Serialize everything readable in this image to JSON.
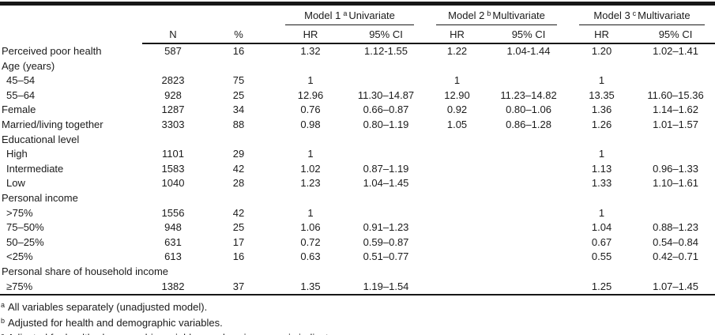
{
  "table": {
    "col_headers": {
      "n": "N",
      "pct": "%",
      "hr": "HR",
      "ci": "95% CI"
    },
    "model_groups": [
      {
        "name": "Model 1",
        "sup": "a",
        "type": "Univariate"
      },
      {
        "name": "Model 2",
        "sup": "b",
        "type": "Multivariate"
      },
      {
        "name": "Model 3",
        "sup": "c",
        "type": "Multivariate"
      }
    ],
    "rows": [
      {
        "label": "Perceived poor health",
        "category": false,
        "indent": false,
        "n": "587",
        "pct": "16",
        "m1hr": "1.32",
        "m1ci": "1.12-1.55",
        "m2hr": "1.22",
        "m2ci": "1.04-1.44",
        "m3hr": "1.20",
        "m3ci": "1.02–1.41"
      },
      {
        "label": "Age (years)",
        "category": true,
        "indent": false,
        "n": "",
        "pct": "",
        "m1hr": "",
        "m1ci": "",
        "m2hr": "",
        "m2ci": "",
        "m3hr": "",
        "m3ci": ""
      },
      {
        "label": "45–54",
        "category": false,
        "indent": true,
        "n": "2823",
        "pct": "75",
        "m1hr": "1",
        "m1ci": "",
        "m2hr": "1",
        "m2ci": "",
        "m3hr": "1",
        "m3ci": ""
      },
      {
        "label": "55–64",
        "category": false,
        "indent": true,
        "n": "928",
        "pct": "25",
        "m1hr": "12.96",
        "m1ci": "11.30–14.87",
        "m2hr": "12.90",
        "m2ci": "11.23–14.82",
        "m3hr": "13.35",
        "m3ci": "11.60–15.36"
      },
      {
        "label": "Female",
        "category": false,
        "indent": false,
        "n": "1287",
        "pct": "34",
        "m1hr": "0.76",
        "m1ci": "0.66–0.87",
        "m2hr": "0.92",
        "m2ci": "0.80–1.06",
        "m3hr": "1.36",
        "m3ci": "1.14–1.62"
      },
      {
        "label": "Married/living together",
        "category": false,
        "indent": false,
        "n": "3303",
        "pct": "88",
        "m1hr": "0.98",
        "m1ci": "0.80–1.19",
        "m2hr": "1.05",
        "m2ci": "0.86–1.28",
        "m3hr": "1.26",
        "m3ci": "1.01–1.57"
      },
      {
        "label": "Educational level",
        "category": true,
        "indent": false,
        "n": "",
        "pct": "",
        "m1hr": "",
        "m1ci": "",
        "m2hr": "",
        "m2ci": "",
        "m3hr": "",
        "m3ci": ""
      },
      {
        "label": "High",
        "category": false,
        "indent": true,
        "n": "1101",
        "pct": "29",
        "m1hr": "1",
        "m1ci": "",
        "m2hr": "",
        "m2ci": "",
        "m3hr": "1",
        "m3ci": ""
      },
      {
        "label": "Intermediate",
        "category": false,
        "indent": true,
        "n": "1583",
        "pct": "42",
        "m1hr": "1.02",
        "m1ci": "0.87–1.19",
        "m2hr": "",
        "m2ci": "",
        "m3hr": "1.13",
        "m3ci": "0.96–1.33"
      },
      {
        "label": "Low",
        "category": false,
        "indent": true,
        "n": "1040",
        "pct": "28",
        "m1hr": "1.23",
        "m1ci": "1.04–1.45",
        "m2hr": "",
        "m2ci": "",
        "m3hr": "1.33",
        "m3ci": "1.10–1.61"
      },
      {
        "label": "Personal income",
        "category": true,
        "indent": false,
        "n": "",
        "pct": "",
        "m1hr": "",
        "m1ci": "",
        "m2hr": "",
        "m2ci": "",
        "m3hr": "",
        "m3ci": ""
      },
      {
        "label": ">75%",
        "category": false,
        "indent": true,
        "n": "1556",
        "pct": "42",
        "m1hr": "1",
        "m1ci": "",
        "m2hr": "",
        "m2ci": "",
        "m3hr": "1",
        "m3ci": ""
      },
      {
        "label": "75–50%",
        "category": false,
        "indent": true,
        "n": "948",
        "pct": "25",
        "m1hr": "1.06",
        "m1ci": "0.91–1.23",
        "m2hr": "",
        "m2ci": "",
        "m3hr": "1.04",
        "m3ci": "0.88–1.23"
      },
      {
        "label": "50–25%",
        "category": false,
        "indent": true,
        "n": "631",
        "pct": "17",
        "m1hr": "0.72",
        "m1ci": "0.59–0.87",
        "m2hr": "",
        "m2ci": "",
        "m3hr": "0.67",
        "m3ci": "0.54–0.84"
      },
      {
        "label": "<25%",
        "category": false,
        "indent": true,
        "n": "613",
        "pct": "16",
        "m1hr": "0.63",
        "m1ci": "0.51–0.77",
        "m2hr": "",
        "m2ci": "",
        "m3hr": "0.55",
        "m3ci": "0.42–0.71"
      },
      {
        "label": "Personal share of household income",
        "category": true,
        "indent": false,
        "n": "",
        "pct": "",
        "m1hr": "",
        "m1ci": "",
        "m2hr": "",
        "m2ci": "",
        "m3hr": "",
        "m3ci": ""
      },
      {
        "label": "≥75%",
        "category": false,
        "indent": true,
        "n": "1382",
        "pct": "37",
        "m1hr": "1.35",
        "m1ci": "1.19–1.54",
        "m2hr": "",
        "m2ci": "",
        "m3hr": "1.25",
        "m3ci": "1.07–1.45"
      }
    ],
    "footnotes": [
      {
        "sup": "a",
        "text": "All variables separately (unadjusted model)."
      },
      {
        "sup": "b",
        "text": "Adjusted for health and demographic variables."
      },
      {
        "sup": "c",
        "text": "Adjusted for health, demographic variables, and socioeconomic indicators."
      }
    ]
  }
}
